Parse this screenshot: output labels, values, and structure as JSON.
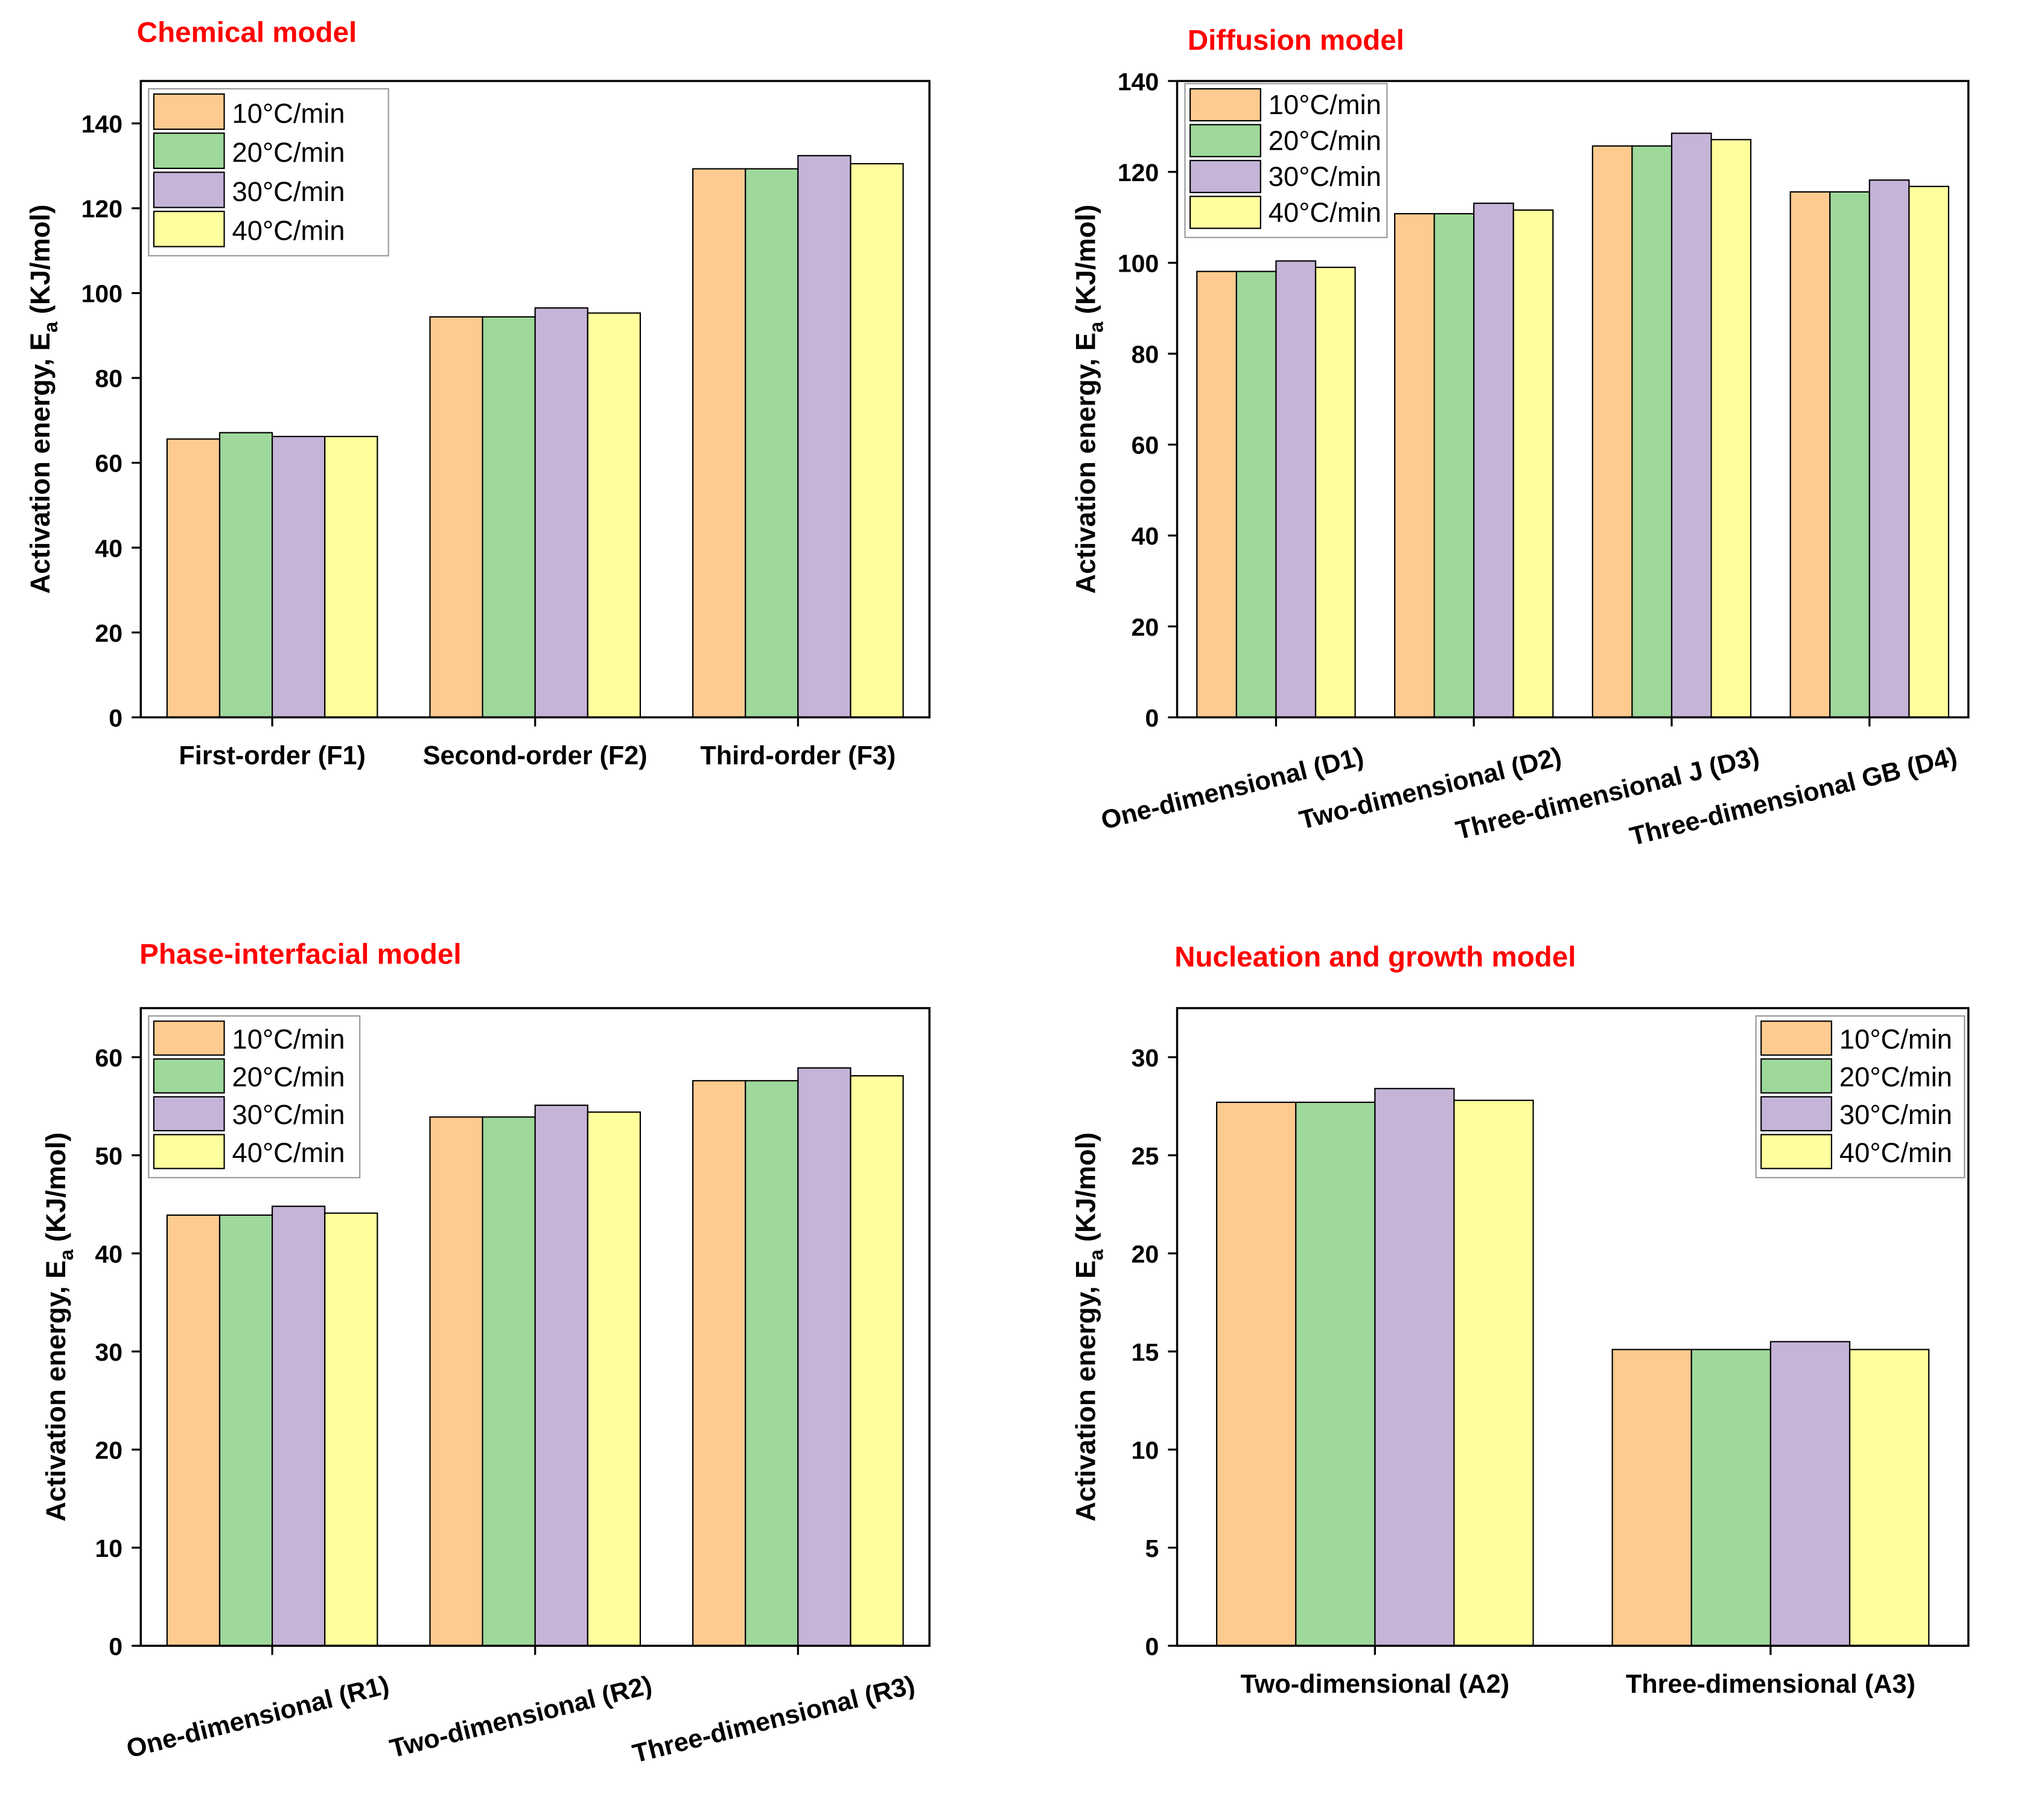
{
  "colors": [
    "#FDCB8F",
    "#9FD89B",
    "#C6B3D8",
    "#FFFF9E"
  ],
  "chart_data": [
    {
      "type": "bar",
      "title": "Chemical model",
      "ylabel_prefix": "Activation energy, E",
      "ylabel_sub": "a",
      "ylabel_suffix": " (KJ/mol)",
      "ylim": [
        0,
        150
      ],
      "yticks": [
        0,
        20,
        40,
        60,
        80,
        100,
        120,
        140
      ],
      "categories": [
        "First-order (F1)",
        "Second-order (F2)",
        "Third-order (F3)"
      ],
      "legend_position": "top-left",
      "series": [
        {
          "name": "10°C/min",
          "values": [
            65.6,
            94.4,
            129.3
          ]
        },
        {
          "name": " 20°C/min",
          "values": [
            67.1,
            94.4,
            129.3
          ]
        },
        {
          "name": "30°C/min",
          "values": [
            66.2,
            96.5,
            132.4
          ]
        },
        {
          "name": "40°C/min",
          "values": [
            66.2,
            95.3,
            130.5
          ]
        }
      ]
    },
    {
      "type": "bar",
      "title": "Diffusion model",
      "ylabel_prefix": "Activation energy, E",
      "ylabel_sub": "a",
      "ylabel_suffix": " (KJ/mol)",
      "ylim": [
        0,
        140
      ],
      "yticks": [
        0,
        20,
        40,
        60,
        80,
        100,
        120,
        140
      ],
      "categories": [
        "One-dimensional (D1)",
        "Two-dimensional (D2)",
        "Three-dimensional J (D3)",
        "Three-dimensional GB (D4)"
      ],
      "legend_position": "top-left",
      "series": [
        {
          "name": "10°C/min",
          "values": [
            98.1,
            110.8,
            125.7,
            115.6
          ]
        },
        {
          "name": "20°C/min",
          "values": [
            98.1,
            110.8,
            125.7,
            115.6
          ]
        },
        {
          "name": "30°C/min",
          "values": [
            100.4,
            113.1,
            128.5,
            118.2
          ]
        },
        {
          "name": "40°C/min",
          "values": [
            99.0,
            111.6,
            127.1,
            116.8
          ]
        }
      ]
    },
    {
      "type": "bar",
      "title": "Phase-interfacial model",
      "ylabel_prefix": "Activation energy, E",
      "ylabel_sub": "a",
      "ylabel_suffix": " (KJ/mol)",
      "ylim": [
        0,
        65
      ],
      "yticks": [
        0,
        10,
        20,
        30,
        40,
        50,
        60
      ],
      "categories": [
        "One-dimensional (R1)",
        "Two-dimensional (R2)",
        "Three-dimensional (R3)"
      ],
      "legend_position": "top-left",
      "series": [
        {
          "name": "10°C/min",
          "values": [
            43.9,
            53.9,
            57.6
          ]
        },
        {
          "name": "20°C/min",
          "values": [
            43.9,
            53.9,
            57.6
          ]
        },
        {
          "name": "30°C/min",
          "values": [
            44.8,
            55.1,
            58.9
          ]
        },
        {
          "name": "40°C/min",
          "values": [
            44.1,
            54.4,
            58.1
          ]
        }
      ]
    },
    {
      "type": "bar",
      "title": "Nucleation and growth model",
      "ylabel_prefix": "Activation energy, E",
      "ylabel_sub": "a",
      "ylabel_suffix": " (KJ/mol)",
      "ylim": [
        0,
        32.5
      ],
      "yticks": [
        0,
        5,
        10,
        15,
        20,
        25,
        30
      ],
      "categories": [
        "Two-dimensional (A2)",
        "Three-dimensional (A3)"
      ],
      "legend_position": "top-right",
      "series": [
        {
          "name": "10°C/min",
          "values": [
            27.7,
            15.1
          ]
        },
        {
          "name": "20°C/min",
          "values": [
            27.7,
            15.1
          ]
        },
        {
          "name": "30°C/min",
          "values": [
            28.4,
            15.5
          ]
        },
        {
          "name": "40°C/min",
          "values": [
            27.8,
            15.1
          ]
        }
      ]
    }
  ]
}
